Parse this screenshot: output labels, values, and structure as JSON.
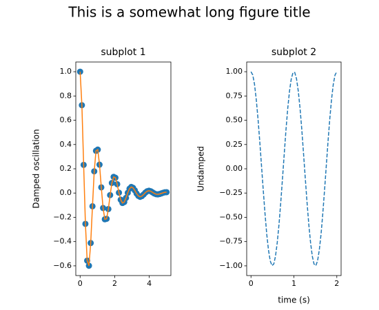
{
  "title": "This is a somewhat long figure title",
  "chart_data": [
    {
      "type": "line",
      "title": "subplot 1",
      "y_label": "Damped oscillation",
      "x": [
        0,
        0.102,
        0.204,
        0.306,
        0.408,
        0.51,
        0.612,
        0.714,
        0.816,
        0.918,
        1.02,
        1.122,
        1.224,
        1.327,
        1.429,
        1.531,
        1.633,
        1.735,
        1.837,
        1.939,
        2.041,
        2.143,
        2.245,
        2.347,
        2.449,
        2.551,
        2.653,
        2.755,
        2.857,
        2.959,
        3.061,
        3.163,
        3.265,
        3.367,
        3.469,
        3.571,
        3.673,
        3.776,
        3.878,
        3.98,
        4.082,
        4.184,
        4.286,
        4.388,
        4.49,
        4.592,
        4.694,
        4.796,
        4.898,
        5
      ],
      "series": [
        {
          "marker": "o",
          "marker_color": "#1f77b4",
          "line_color": "#ff7f0e",
          "values": [
            1,
            0.724,
            0.232,
            -0.254,
            -0.557,
            -0.599,
            -0.412,
            -0.109,
            0.179,
            0.348,
            0.358,
            0.234,
            0.047,
            -0.123,
            -0.216,
            -0.212,
            -0.132,
            -0.017,
            0.083,
            0.133,
            0.126,
            0.073,
            0.003,
            -0.055,
            -0.082,
            -0.074,
            -0.04,
            0.002,
            0.036,
            0.05,
            0.043,
            0.022,
            -0.004,
            -0.023,
            -0.031,
            -0.025,
            -0.012,
            0.004,
            0.015,
            0.019,
            0.015,
            0.006,
            -0.003,
            -0.009,
            -0.011,
            -0.008,
            -0.003,
            0.002,
            0.006,
            0.007
          ]
        }
      ],
      "xlim": [
        -0.25,
        5.25
      ],
      "ylim": [
        -0.68,
        1.08
      ],
      "xticks": [
        0,
        2,
        4
      ],
      "yticks": [
        {
          "value": -0.6,
          "label": "−0.6"
        },
        {
          "value": -0.4,
          "label": "−0.4"
        },
        {
          "value": -0.2,
          "label": "−0.2"
        },
        {
          "value": 0,
          "label": "0.0"
        },
        0.2,
        0.4,
        0.6,
        0.8,
        {
          "value": 1,
          "label": "1.0"
        }
      ]
    },
    {
      "type": "line",
      "title": "subplot 2",
      "y_label": "Undamped",
      "x_label": "time (s)",
      "x": [
        0,
        0.041,
        0.082,
        0.122,
        0.163,
        0.204,
        0.245,
        0.286,
        0.327,
        0.367,
        0.408,
        0.449,
        0.49,
        0.531,
        0.571,
        0.612,
        0.653,
        0.694,
        0.735,
        0.776,
        0.816,
        0.857,
        0.898,
        0.939,
        0.98,
        1.02,
        1.061,
        1.102,
        1.143,
        1.184,
        1.224,
        1.265,
        1.306,
        1.347,
        1.388,
        1.429,
        1.469,
        1.51,
        1.551,
        1.592,
        1.633,
        1.673,
        1.714,
        1.755,
        1.796,
        1.837,
        1.878,
        1.918,
        1.959,
        2
      ],
      "series": [
        {
          "linestyle": "dashed",
          "line_color": "#1f77b4",
          "values": [
            1,
            0.967,
            0.871,
            0.718,
            0.518,
            0.285,
            0.032,
            -0.222,
            -0.463,
            -0.673,
            -0.837,
            -0.95,
            -0.998,
            -0.981,
            -0.901,
            -0.76,
            -0.572,
            -0.345,
            -0.096,
            0.16,
            0.405,
            0.624,
            0.801,
            0.927,
            0.992,
            0.992,
            0.927,
            0.801,
            0.624,
            0.405,
            0.16,
            -0.096,
            -0.345,
            -0.572,
            -0.76,
            -0.901,
            -0.981,
            -0.998,
            -0.95,
            -0.837,
            -0.673,
            -0.463,
            -0.222,
            0.032,
            0.285,
            0.518,
            0.718,
            0.871,
            0.967,
            1
          ]
        }
      ],
      "xlim": [
        -0.1,
        2.1
      ],
      "ylim": [
        -1.1,
        1.1
      ],
      "xticks": [
        0,
        1,
        2
      ],
      "yticks": [
        {
          "value": -1,
          "label": "−1.00"
        },
        {
          "value": -0.75,
          "label": "−0.75"
        },
        {
          "value": -0.5,
          "label": "−0.50"
        },
        {
          "value": -0.25,
          "label": "−0.25"
        },
        {
          "value": 0,
          "label": "0.00"
        },
        {
          "value": 0.25,
          "label": "0.25"
        },
        {
          "value": 0.5,
          "label": "0.50"
        },
        {
          "value": 0.75,
          "label": "0.75"
        },
        {
          "value": 1,
          "label": "1.00"
        }
      ]
    }
  ]
}
